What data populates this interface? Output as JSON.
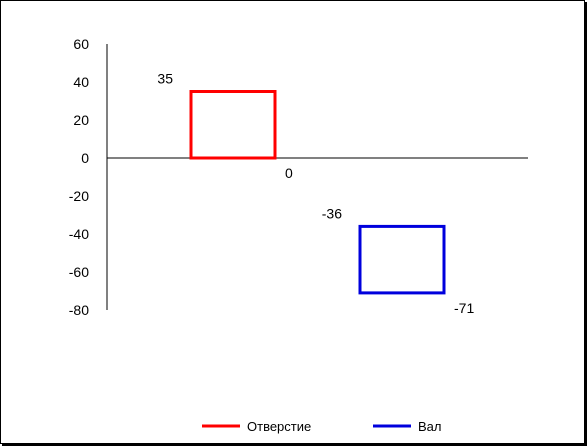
{
  "chart_data": {
    "type": "bar",
    "description_style": "tolerance-zone boxes",
    "ylim": [
      -80,
      60
    ],
    "ytick_values": [
      60,
      40,
      20,
      0,
      -20,
      -40,
      -60,
      -80
    ],
    "ytick_labels": [
      "60",
      "40",
      "20",
      "0",
      "-20",
      "-40",
      "-60",
      "-80"
    ],
    "grid": false,
    "legend_position": "bottom",
    "series": [
      {
        "name": "Отверстие",
        "color": "#ff0000",
        "upper": 35,
        "lower": 0,
        "upper_label": "35",
        "lower_label": "0"
      },
      {
        "name": "Вал",
        "color": "#0000dd",
        "upper": -36,
        "lower": -71,
        "upper_label": "-36",
        "lower_label": "-71"
      }
    ]
  }
}
